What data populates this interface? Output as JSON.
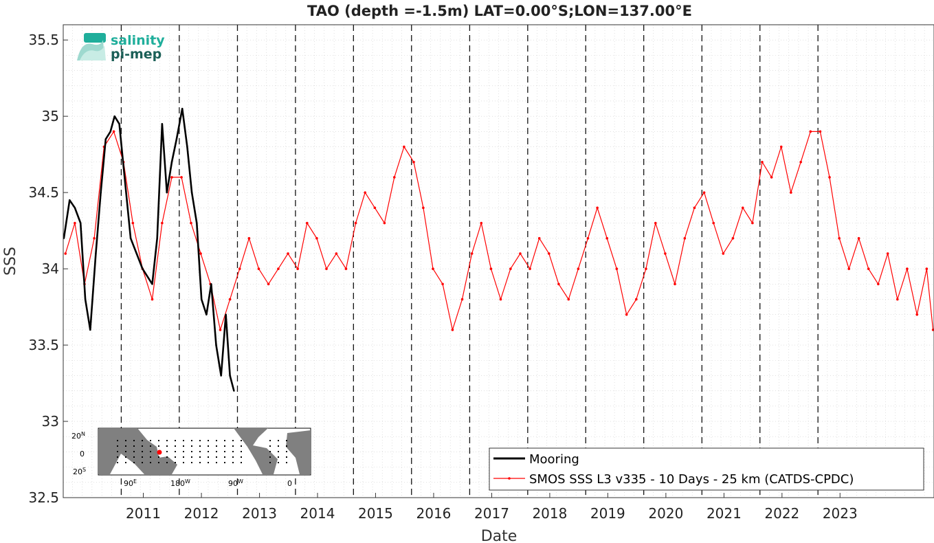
{
  "chart_data": {
    "type": "line",
    "title": "TAO (depth =-1.5m) LAT=0.00°S;LON=137.00°E",
    "xlabel": "Date",
    "ylabel": "SSS",
    "xlim": [
      "2010-01-01",
      "2024-12-31"
    ],
    "ylim": [
      32.5,
      35.6
    ],
    "x_ticks": [
      "2011",
      "2012",
      "2013",
      "2014",
      "2015",
      "2016",
      "2017",
      "2018",
      "2019",
      "2020",
      "2021",
      "2022",
      "2023"
    ],
    "y_ticks": [
      "32.5",
      "33",
      "33.5",
      "34",
      "34.5",
      "35",
      "35.5"
    ],
    "year_boundaries": [
      "2011-01-01",
      "2012-01-01",
      "2013-01-01",
      "2014-01-01",
      "2015-01-01",
      "2016-01-01",
      "2017-01-01",
      "2018-01-01",
      "2019-01-01",
      "2020-01-01",
      "2021-01-01",
      "2022-01-01",
      "2023-01-01"
    ],
    "grid": "on (minor dotted)",
    "legend_position": "bottom-right",
    "series": [
      {
        "name": "Mooring",
        "color": "#000000",
        "points": [
          [
            "2010-01-05",
            34.2
          ],
          [
            "2010-02-10",
            34.45
          ],
          [
            "2010-03-15",
            34.4
          ],
          [
            "2010-04-20",
            34.3
          ],
          [
            "2010-05-20",
            33.8
          ],
          [
            "2010-06-20",
            33.6
          ],
          [
            "2010-07-25",
            34.1
          ],
          [
            "2010-08-25",
            34.5
          ],
          [
            "2010-09-25",
            34.85
          ],
          [
            "2010-10-25",
            34.9
          ],
          [
            "2010-11-20",
            35.0
          ],
          [
            "2010-12-20",
            34.95
          ],
          [
            "2011-03-01",
            34.2
          ],
          [
            "2011-05-15",
            34.0
          ],
          [
            "2011-07-15",
            33.9
          ],
          [
            "2011-08-15",
            34.2
          ],
          [
            "2011-09-15",
            34.95
          ],
          [
            "2011-10-15",
            34.5
          ],
          [
            "2011-11-15",
            34.7
          ],
          [
            "2011-12-15",
            34.85
          ],
          [
            "2012-01-20",
            35.05
          ],
          [
            "2012-02-20",
            34.8
          ],
          [
            "2012-03-20",
            34.5
          ],
          [
            "2012-04-20",
            34.3
          ],
          [
            "2012-05-20",
            33.8
          ],
          [
            "2012-06-20",
            33.7
          ],
          [
            "2012-07-20",
            33.9
          ],
          [
            "2012-08-20",
            33.5
          ],
          [
            "2012-09-20",
            33.3
          ],
          [
            "2012-10-20",
            33.7
          ],
          [
            "2012-11-15",
            33.3
          ],
          [
            "2012-12-10",
            33.2
          ]
        ]
      },
      {
        "name": "SMOS SSS L3 v335 - 10 Days - 25 km (CATDS-CPDC)",
        "color": "#ff0000",
        "points": [
          [
            "2010-01-15",
            34.1
          ],
          [
            "2010-03-15",
            34.3
          ],
          [
            "2010-05-15",
            33.9
          ],
          [
            "2010-07-15",
            34.2
          ],
          [
            "2010-09-15",
            34.8
          ],
          [
            "2010-11-15",
            34.9
          ],
          [
            "2011-01-15",
            34.7
          ],
          [
            "2011-03-15",
            34.3
          ],
          [
            "2011-05-15",
            34.0
          ],
          [
            "2011-07-15",
            33.8
          ],
          [
            "2011-09-15",
            34.3
          ],
          [
            "2011-11-15",
            34.6
          ],
          [
            "2012-01-15",
            34.6
          ],
          [
            "2012-03-15",
            34.3
          ],
          [
            "2012-05-15",
            34.1
          ],
          [
            "2012-07-15",
            33.9
          ],
          [
            "2012-09-15",
            33.6
          ],
          [
            "2012-11-15",
            33.8
          ],
          [
            "2013-01-15",
            34.0
          ],
          [
            "2013-03-15",
            34.2
          ],
          [
            "2013-05-15",
            34.0
          ],
          [
            "2013-07-15",
            33.9
          ],
          [
            "2013-09-15",
            34.0
          ],
          [
            "2013-11-15",
            34.1
          ],
          [
            "2014-01-15",
            34.0
          ],
          [
            "2014-03-15",
            34.3
          ],
          [
            "2014-05-15",
            34.2
          ],
          [
            "2014-07-15",
            34.0
          ],
          [
            "2014-09-15",
            34.1
          ],
          [
            "2014-11-15",
            34.0
          ],
          [
            "2015-01-15",
            34.3
          ],
          [
            "2015-03-15",
            34.5
          ],
          [
            "2015-05-15",
            34.4
          ],
          [
            "2015-07-15",
            34.3
          ],
          [
            "2015-09-15",
            34.6
          ],
          [
            "2015-11-15",
            34.8
          ],
          [
            "2016-01-15",
            34.7
          ],
          [
            "2016-03-15",
            34.4
          ],
          [
            "2016-05-15",
            34.0
          ],
          [
            "2016-07-15",
            33.9
          ],
          [
            "2016-09-15",
            33.6
          ],
          [
            "2016-11-15",
            33.8
          ],
          [
            "2017-01-15",
            34.1
          ],
          [
            "2017-03-15",
            34.3
          ],
          [
            "2017-05-15",
            34.0
          ],
          [
            "2017-07-15",
            33.8
          ],
          [
            "2017-09-15",
            34.0
          ],
          [
            "2017-11-15",
            34.1
          ],
          [
            "2018-01-15",
            34.0
          ],
          [
            "2018-03-15",
            34.2
          ],
          [
            "2018-05-15",
            34.1
          ],
          [
            "2018-07-15",
            33.9
          ],
          [
            "2018-09-15",
            33.8
          ],
          [
            "2018-11-15",
            34.0
          ],
          [
            "2019-01-15",
            34.2
          ],
          [
            "2019-03-15",
            34.4
          ],
          [
            "2019-05-15",
            34.2
          ],
          [
            "2019-07-15",
            34.0
          ],
          [
            "2019-09-15",
            33.7
          ],
          [
            "2019-11-15",
            33.8
          ],
          [
            "2020-01-15",
            34.0
          ],
          [
            "2020-03-15",
            34.3
          ],
          [
            "2020-05-15",
            34.1
          ],
          [
            "2020-07-15",
            33.9
          ],
          [
            "2020-09-15",
            34.2
          ],
          [
            "2020-11-15",
            34.4
          ],
          [
            "2021-01-15",
            34.5
          ],
          [
            "2021-03-15",
            34.3
          ],
          [
            "2021-05-15",
            34.1
          ],
          [
            "2021-07-15",
            34.2
          ],
          [
            "2021-09-15",
            34.4
          ],
          [
            "2021-11-15",
            34.3
          ],
          [
            "2022-01-15",
            34.7
          ],
          [
            "2022-03-15",
            34.6
          ],
          [
            "2022-05-15",
            34.8
          ],
          [
            "2022-07-15",
            34.5
          ],
          [
            "2022-09-15",
            34.7
          ],
          [
            "2022-11-15",
            34.9
          ],
          [
            "2023-01-15",
            34.9
          ],
          [
            "2023-03-15",
            34.6
          ],
          [
            "2023-05-15",
            34.2
          ],
          [
            "2023-07-15",
            34.0
          ],
          [
            "2023-09-15",
            34.2
          ],
          [
            "2023-11-15",
            34.0
          ],
          [
            "2024-01-15",
            33.9
          ],
          [
            "2024-03-15",
            34.1
          ],
          [
            "2024-05-15",
            33.8
          ],
          [
            "2024-07-15",
            34.0
          ],
          [
            "2024-09-15",
            33.7
          ],
          [
            "2024-11-15",
            34.0
          ],
          [
            "2024-12-25",
            33.6
          ]
        ]
      }
    ]
  },
  "logo": {
    "line1": "salinity",
    "line2": "pi-mep",
    "color_primary": "#1fae9b",
    "color_secondary": "#1b5f57"
  },
  "inset_map": {
    "lat_labels": [
      "20",
      "0",
      "20"
    ],
    "lat_suffix": [
      "N",
      "",
      "S"
    ],
    "lon_labels": [
      "90",
      "180",
      "90",
      "0"
    ],
    "lon_suffix": [
      "E",
      "W",
      "W",
      ""
    ],
    "land_color": "#808080",
    "ocean_color": "#ffffff",
    "marker_color": "#ff0000"
  }
}
